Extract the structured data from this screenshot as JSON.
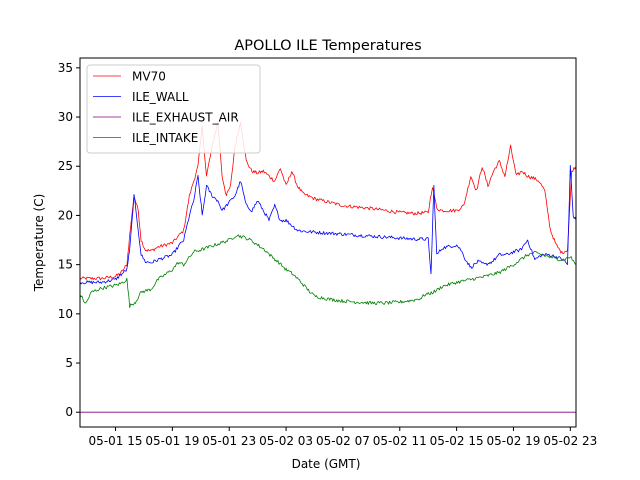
{
  "chart_data": {
    "type": "line",
    "title": "APOLLO ILE Temperatures",
    "xlabel": "Date (GMT)",
    "ylabel": "Temperature (C)",
    "x_unit": "hours since 05-01 11:00 GMT",
    "xlim": [
      1.5,
      36.4
    ],
    "ylim": [
      -1.5,
      36
    ],
    "yticks": [
      0,
      5,
      10,
      15,
      20,
      25,
      30,
      35
    ],
    "xticks": [
      {
        "value": 4,
        "label": "05-01 15"
      },
      {
        "value": 8,
        "label": "05-01 19"
      },
      {
        "value": 12,
        "label": "05-01 23"
      },
      {
        "value": 16,
        "label": "05-02 03"
      },
      {
        "value": 20,
        "label": "05-02 07"
      },
      {
        "value": 24,
        "label": "05-02 11"
      },
      {
        "value": 28,
        "label": "05-02 15"
      },
      {
        "value": 32,
        "label": "05-02 19"
      },
      {
        "value": 36,
        "label": "05-02 23"
      }
    ],
    "legend_position": "top-left",
    "series": [
      {
        "name": "MV70",
        "color": "#ff0000",
        "x": [
          1.5,
          3,
          4,
          4.4,
          4.8,
          5,
          5.3,
          5.6,
          5.8,
          6.1,
          6.5,
          7,
          8,
          8.8,
          9.2,
          9.5,
          9.8,
          10.1,
          10.4,
          10.8,
          11.2,
          11.5,
          11.8,
          12.1,
          12.4,
          12.8,
          13.2,
          13.6,
          14,
          14.4,
          14.8,
          15.2,
          15.6,
          16,
          16.4,
          16.8,
          17.2,
          18,
          20,
          22,
          24,
          25,
          26,
          26.3,
          26.6,
          27,
          28,
          28.5,
          29,
          29.4,
          29.8,
          30.2,
          30.6,
          31,
          31.4,
          31.8,
          32.2,
          32.6,
          33,
          33.4,
          33.8,
          34.2,
          34.6,
          35,
          35.4,
          35.8,
          36.1,
          36.4
        ],
        "y": [
          13.6,
          13.6,
          13.8,
          14.2,
          15,
          18,
          22,
          20.5,
          17.5,
          16.5,
          16.4,
          16.8,
          17.2,
          18.5,
          22,
          23.5,
          25,
          29,
          24,
          27,
          29.5,
          24,
          22,
          23,
          27,
          29.5,
          25.5,
          24.5,
          24.3,
          24.5,
          24,
          23.5,
          24.8,
          23,
          24.5,
          23,
          22.2,
          21.7,
          21,
          20.7,
          20.3,
          20.2,
          20.3,
          23,
          20.7,
          20.5,
          20.5,
          21,
          24,
          22.5,
          25,
          23,
          24.5,
          25.5,
          24,
          27,
          24,
          24.5,
          24,
          23.8,
          23.5,
          22.5,
          18.5,
          17,
          16.2,
          16.5,
          24.5,
          25
        ]
      },
      {
        "name": "ILE_WALL",
        "color": "#0000ff",
        "x": [
          1.5,
          3,
          4,
          4.4,
          4.8,
          5,
          5.3,
          5.6,
          5.8,
          6.1,
          6.5,
          7,
          8,
          8.5,
          8.8,
          9.2,
          9.5,
          9.8,
          10.1,
          10.4,
          10.8,
          11.2,
          11.5,
          11.8,
          12.1,
          12.4,
          12.8,
          13.2,
          13.6,
          14,
          14.4,
          14.8,
          15.2,
          15.6,
          16,
          16.4,
          16.8,
          17.2,
          18,
          20,
          22,
          24,
          25,
          26,
          26.2,
          26.4,
          26.6,
          27,
          28,
          28.3,
          28.6,
          29,
          29.5,
          30,
          30.5,
          31,
          31.5,
          32,
          32.5,
          33,
          33.5,
          34,
          34.5,
          35,
          35.5,
          35.8,
          36,
          36.2,
          36.4
        ],
        "y": [
          13.2,
          13.2,
          13.5,
          14,
          14.5,
          16.5,
          22,
          18.5,
          16,
          15.3,
          15.2,
          15.5,
          16,
          17,
          17.5,
          20,
          21.5,
          24,
          20,
          23,
          22,
          21.5,
          20.5,
          21,
          21.5,
          22,
          23.5,
          21,
          20.5,
          21.5,
          20.5,
          19.5,
          21,
          19.5,
          19.5,
          19,
          18.5,
          18.4,
          18.3,
          18.1,
          17.9,
          17.7,
          17.6,
          17.6,
          14,
          23,
          16,
          16.7,
          17,
          16.5,
          15.6,
          14.7,
          15.3,
          15,
          15.3,
          16,
          16,
          16.3,
          16.5,
          17.5,
          15.5,
          16,
          16,
          15.8,
          15.5,
          15,
          25,
          20,
          19.5
        ]
      },
      {
        "name": "ILE_EXHAUST_AIR",
        "color": "#800080",
        "x": [
          1.5,
          36.4
        ],
        "y": [
          0,
          0
        ]
      },
      {
        "name": "ILE_INTAKE",
        "color": "#008000",
        "x": [
          1.5,
          1.9,
          2.3,
          3,
          4,
          4.4,
          4.8,
          5,
          5.4,
          5.8,
          6.5,
          7,
          7.5,
          8,
          8.4,
          8.8,
          9.5,
          10,
          11,
          12,
          12.5,
          13,
          13.5,
          14,
          14.5,
          15,
          15.5,
          16,
          16.5,
          17,
          17.5,
          18,
          19,
          20,
          21,
          22,
          23,
          24,
          25,
          25.5,
          25.8,
          26,
          26.5,
          27,
          28,
          29,
          30,
          31,
          32,
          32.5,
          33,
          33.5,
          34,
          35,
          35.5,
          36,
          36.4
        ],
        "y": [
          12,
          11,
          12.2,
          12.6,
          12.9,
          13.1,
          13.5,
          10.8,
          11.2,
          12.2,
          12.5,
          13.5,
          14,
          14.5,
          15.2,
          15,
          16.3,
          16.5,
          17,
          17.5,
          18,
          17.8,
          17.5,
          17,
          16.5,
          15.8,
          15.2,
          14.5,
          14,
          13.3,
          12.5,
          11.8,
          11.5,
          11.3,
          11.2,
          11.1,
          11.1,
          11.2,
          11.4,
          11.6,
          12,
          12,
          12.3,
          12.8,
          13.2,
          13.5,
          13.8,
          14.2,
          15,
          15.5,
          16,
          16.2,
          16,
          15.6,
          15.5,
          15.8,
          15
        ]
      }
    ]
  }
}
